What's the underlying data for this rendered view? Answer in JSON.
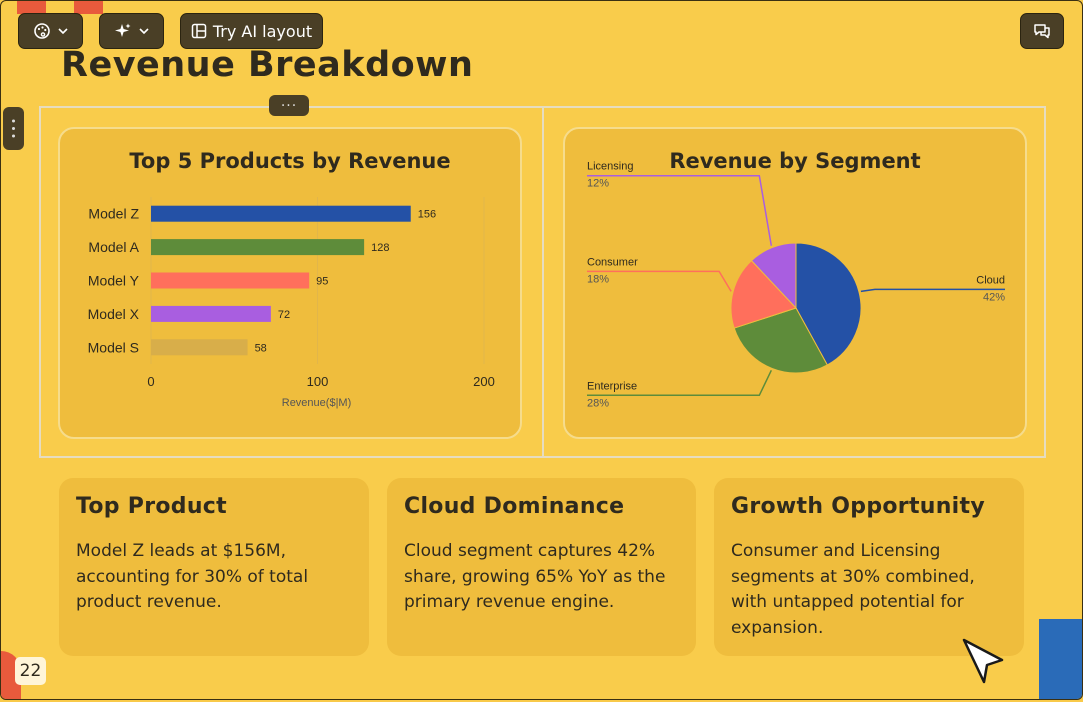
{
  "toolbar": {
    "ai_layout_label": "Try AI layout"
  },
  "slide": {
    "title": "Revenue Breakdown",
    "page_number": "22"
  },
  "colors": {
    "background": "#f9cc4b",
    "card": "#efbd3d",
    "text": "#2f2a1e",
    "toolbar": "#4a3f26"
  },
  "chart_data": [
    {
      "type": "bar",
      "title": "Top 5 Products by Revenue",
      "orientation": "horizontal",
      "categories": [
        "Model Z",
        "Model A",
        "Model Y",
        "Model X",
        "Model S"
      ],
      "values": [
        156,
        128,
        95,
        72,
        58
      ],
      "colors": [
        "#2451a6",
        "#5e8c3a",
        "#ff6f5c",
        "#a95ee0",
        "#d8ae4a"
      ],
      "xlabel": "Revenue($|M)",
      "xlim": [
        0,
        200
      ],
      "xticks": [
        0,
        100,
        200
      ]
    },
    {
      "type": "pie",
      "title": "Revenue by Segment",
      "slices": [
        {
          "label": "Cloud",
          "value": 42,
          "pct": "42%",
          "color": "#2451a6"
        },
        {
          "label": "Enterprise",
          "value": 28,
          "pct": "28%",
          "color": "#5e8c3a"
        },
        {
          "label": "Consumer",
          "value": 18,
          "pct": "18%",
          "color": "#ff6f5c"
        },
        {
          "label": "Licensing",
          "value": 12,
          "pct": "12%",
          "color": "#a95ee0"
        }
      ]
    }
  ],
  "insights": [
    {
      "title": "Top Product",
      "body": "Model Z leads at $156M, accounting for 30% of total product revenue."
    },
    {
      "title": "Cloud Dominance",
      "body": "Cloud segment captures 42% share, growing 65% YoY as the primary revenue engine."
    },
    {
      "title": "Growth Opportunity",
      "body": "Consumer and Licensing segments at 30% combined, with untapped potential for expansion."
    }
  ]
}
